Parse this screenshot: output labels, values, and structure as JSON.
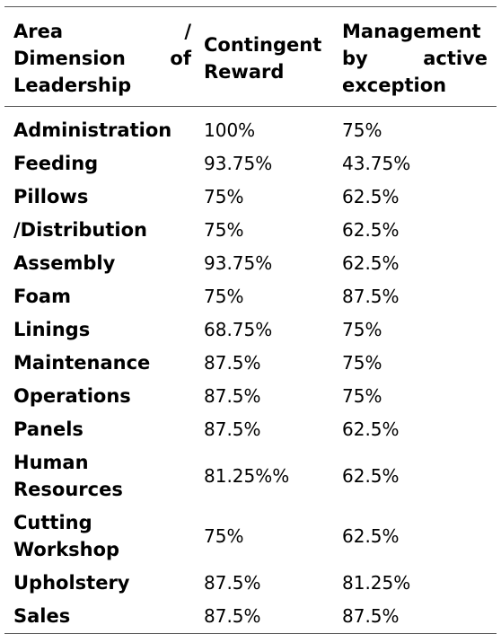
{
  "table": {
    "headers": [
      "Area / Dimension of Leadership",
      "Contingent Reward",
      "Management by active exception"
    ],
    "rows": [
      {
        "area": "Administration",
        "contingent_reward": "100%",
        "management_by_exception": "75%"
      },
      {
        "area": "Feeding",
        "contingent_reward": "93.75%",
        "management_by_exception": "43.75%"
      },
      {
        "area": "Pillows",
        "contingent_reward": "75%",
        "management_by_exception": "62.5%"
      },
      {
        "area": "/Distribution",
        "contingent_reward": "75%",
        "management_by_exception": "62.5%"
      },
      {
        "area": "Assembly",
        "contingent_reward": "93.75%",
        "management_by_exception": "62.5%"
      },
      {
        "area": "Foam",
        "contingent_reward": "75%",
        "management_by_exception": "87.5%"
      },
      {
        "area": "Linings",
        "contingent_reward": "68.75%",
        "management_by_exception": "75%"
      },
      {
        "area": "Maintenance",
        "contingent_reward": "87.5%",
        "management_by_exception": "75%"
      },
      {
        "area": "Operations",
        "contingent_reward": "87.5%",
        "management_by_exception": "75%"
      },
      {
        "area": "Panels",
        "contingent_reward": "87.5%",
        "management_by_exception": "62.5%"
      },
      {
        "area": "Human Resources",
        "contingent_reward": "81.25%%",
        "management_by_exception": "62.5%"
      },
      {
        "area": "Cutting Workshop",
        "contingent_reward": "75%",
        "management_by_exception": "62.5%"
      },
      {
        "area": "Upholstery",
        "contingent_reward": "87.5%",
        "management_by_exception": "81.25%"
      },
      {
        "area": "Sales",
        "contingent_reward": "87.5%",
        "management_by_exception": "87.5%"
      }
    ]
  }
}
